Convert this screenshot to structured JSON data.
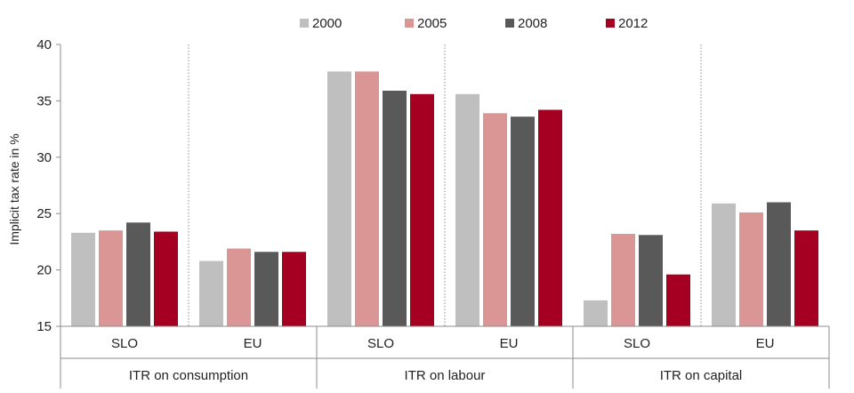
{
  "chart_data": {
    "type": "bar",
    "ylabel": "Implicit tax rate in %",
    "ylim": [
      15,
      40
    ],
    "yticks": [
      15,
      20,
      25,
      30,
      35,
      40
    ],
    "grid": false,
    "legend_position": "top",
    "series": [
      {
        "name": "2000",
        "color": "#bfbfbf",
        "values": [
          23.3,
          20.8,
          37.6,
          35.6,
          17.3,
          25.9
        ]
      },
      {
        "name": "2005",
        "color": "#d99694",
        "values": [
          23.5,
          21.9,
          37.6,
          33.9,
          23.2,
          25.1
        ]
      },
      {
        "name": "2008",
        "color": "#595959",
        "values": [
          24.2,
          21.6,
          35.9,
          33.6,
          23.1,
          26.0
        ]
      },
      {
        "name": "2012",
        "color": "#a50021",
        "values": [
          23.4,
          21.6,
          35.6,
          34.2,
          19.6,
          23.5
        ]
      }
    ],
    "groups": [
      {
        "label": "ITR on consumption",
        "categories": [
          "SLO",
          "EU"
        ]
      },
      {
        "label": "ITR on labour",
        "categories": [
          "SLO",
          "EU"
        ]
      },
      {
        "label": "ITR on capital",
        "categories": [
          "SLO",
          "EU"
        ]
      }
    ]
  }
}
